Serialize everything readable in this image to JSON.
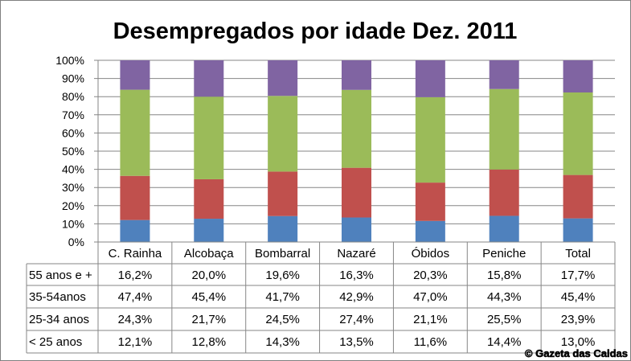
{
  "chart_data": {
    "type": "bar",
    "stacked": true,
    "percent_stacked": true,
    "title": "Desempregados por idade Dez. 2011",
    "categories": [
      "C. Rainha",
      "Alcobaça",
      "Bombarral",
      "Nazaré",
      "Óbidos",
      "Peniche",
      "Total"
    ],
    "series": [
      {
        "name": "< 25 anos",
        "color": "#4f81bd",
        "values": [
          12.1,
          12.8,
          14.3,
          13.5,
          11.6,
          14.4,
          13.0
        ],
        "labels": [
          "12,1%",
          "12,8%",
          "14,3%",
          "13,5%",
          "11,6%",
          "14,4%",
          "13,0%"
        ]
      },
      {
        "name": "25-34 anos",
        "color": "#c0504d",
        "values": [
          24.3,
          21.7,
          24.5,
          27.4,
          21.1,
          25.5,
          23.9
        ],
        "labels": [
          "24,3%",
          "21,7%",
          "24,5%",
          "27,4%",
          "21,1%",
          "25,5%",
          "23,9%"
        ]
      },
      {
        "name": "35-54anos",
        "color": "#9bbb59",
        "values": [
          47.4,
          45.4,
          41.7,
          42.9,
          47.0,
          44.3,
          45.4
        ],
        "labels": [
          "47,4%",
          "45,4%",
          "41,7%",
          "42,9%",
          "47,0%",
          "44,3%",
          "45,4%"
        ]
      },
      {
        "name": "55 anos e +",
        "color": "#8064a2",
        "values": [
          16.2,
          20.0,
          19.6,
          16.3,
          20.3,
          15.8,
          17.7
        ],
        "labels": [
          "16,2%",
          "20,0%",
          "19,6%",
          "16,3%",
          "20,3%",
          "15,8%",
          "17,7%"
        ]
      }
    ],
    "table_row_order": [
      "55 anos e +",
      "35-54anos",
      "25-34 anos",
      "< 25 anos"
    ],
    "ylim": [
      0,
      100
    ],
    "yticks": [
      "0%",
      "10%",
      "20%",
      "30%",
      "40%",
      "50%",
      "60%",
      "70%",
      "80%",
      "90%",
      "100%"
    ],
    "grid": true,
    "legend": "data table below chart"
  },
  "watermark": "© Gazeta das Caldas"
}
